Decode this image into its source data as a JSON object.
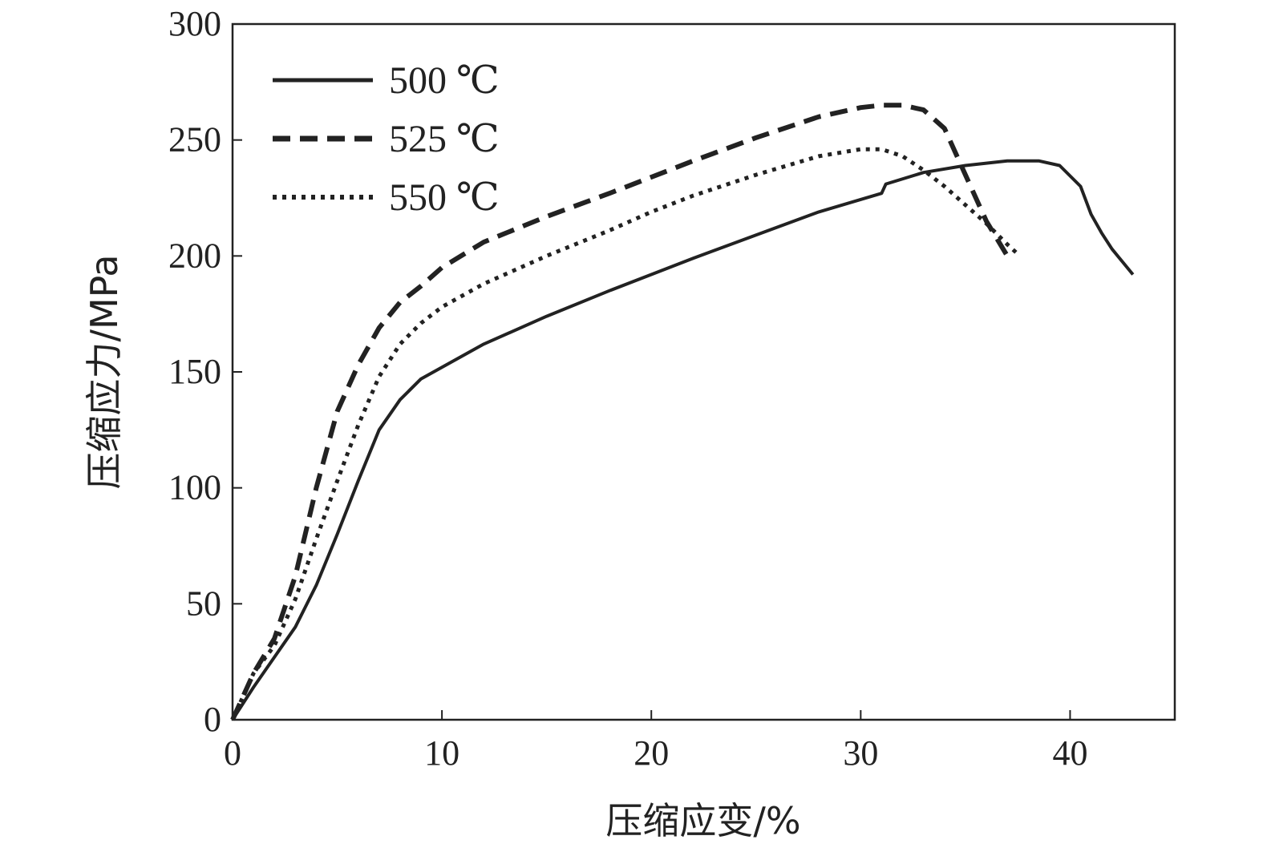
{
  "chart_data": {
    "type": "line",
    "title": "",
    "xlabel": "压缩应变/%",
    "ylabel": "压缩应力/MPa",
    "xlim": [
      0,
      45
    ],
    "ylim": [
      0,
      300
    ],
    "xticks": [
      0,
      10,
      20,
      30,
      40
    ],
    "yticks": [
      0,
      50,
      100,
      150,
      200,
      250,
      300
    ],
    "legend_position": "top-left",
    "grid": false,
    "series": [
      {
        "name": "500 ℃",
        "style": "solid",
        "color": "#222222",
        "x": [
          0,
          1,
          2,
          3,
          4,
          5,
          6,
          7,
          8,
          9,
          10,
          12,
          15,
          18,
          20,
          22,
          25,
          28,
          31,
          31.2,
          33,
          35,
          37,
          38.5,
          39.5,
          40.5,
          41,
          41.5,
          42,
          43
        ],
        "y": [
          0,
          14,
          27,
          40,
          58,
          80,
          103,
          125,
          138,
          147,
          152,
          162,
          174,
          185,
          192,
          199,
          209,
          219,
          227,
          231,
          236,
          239,
          241,
          241,
          239,
          230,
          218,
          210,
          203,
          192
        ]
      },
      {
        "name": "525 ℃",
        "style": "dashed",
        "color": "#222222",
        "x": [
          0,
          1,
          2,
          3,
          4,
          5,
          6,
          7,
          8,
          9,
          10,
          12,
          15,
          18,
          20,
          22,
          25,
          28,
          30,
          31,
          32,
          33,
          34,
          35,
          36,
          37
        ],
        "y": [
          0,
          20,
          35,
          62,
          100,
          133,
          153,
          169,
          180,
          187,
          195,
          206,
          217,
          227,
          234,
          241,
          251,
          260,
          264,
          265,
          265,
          263,
          255,
          235,
          215,
          200
        ]
      },
      {
        "name": "550 ℃",
        "style": "dotted",
        "color": "#222222",
        "x": [
          0,
          1,
          2,
          3,
          4,
          5,
          6,
          7,
          8,
          9,
          10,
          12,
          15,
          18,
          20,
          22,
          25,
          28,
          30,
          31,
          32,
          33,
          34,
          35,
          36,
          37,
          37.6
        ],
        "y": [
          0,
          20,
          32,
          52,
          78,
          103,
          127,
          148,
          162,
          171,
          178,
          188,
          200,
          211,
          219,
          226,
          235,
          243,
          246,
          246,
          243,
          237,
          230,
          222,
          214,
          205,
          200
        ]
      }
    ]
  }
}
